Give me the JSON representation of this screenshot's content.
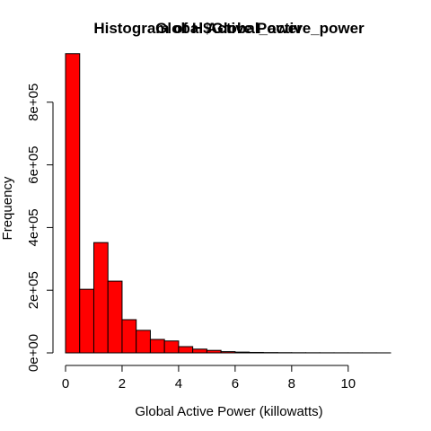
{
  "chart_data": {
    "type": "bar",
    "subtype": "histogram",
    "title_layers": [
      "Histogram of H$Global_active_power",
      "Global Active Power"
    ],
    "xlabel": "Global Active Power (killowatts)",
    "ylabel": "Frequency",
    "bar_color": "#FF0000",
    "edge_color": "#000000",
    "xlim": [
      0,
      11.5
    ],
    "ylim": [
      0,
      960000
    ],
    "x_ticks": [
      0,
      2,
      4,
      6,
      8,
      10
    ],
    "x_tick_labels": [
      "0",
      "2",
      "4",
      "6",
      "8",
      "10"
    ],
    "y_ticks": [
      0,
      200000,
      400000,
      600000,
      800000
    ],
    "y_tick_labels": [
      "0e+00",
      "2e+05",
      "4e+05",
      "6e+05",
      "8e+05"
    ],
    "bin_width": 0.5,
    "bin_starts": [
      0,
      0.5,
      1,
      1.5,
      2,
      2.5,
      3,
      3.5,
      4,
      4.5,
      5,
      5.5,
      6,
      6.5,
      7,
      7.5,
      8,
      8.5,
      9,
      9.5,
      10,
      10.5,
      11
    ],
    "values": [
      955000,
      203000,
      352000,
      229000,
      106000,
      72000,
      43000,
      38000,
      20000,
      12000,
      8000,
      4000,
      2500,
      1500,
      1000,
      700,
      500,
      400,
      300,
      250,
      200,
      150,
      100
    ],
    "grid": false
  }
}
